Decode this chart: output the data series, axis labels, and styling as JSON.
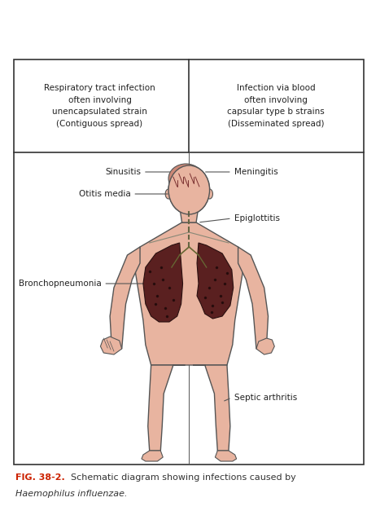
{
  "fig_width": 4.52,
  "fig_height": 6.43,
  "dpi": 100,
  "background_color": "#ffffff",
  "skin_color": "#e8b4a0",
  "skin_outline": "#555555",
  "lung_color": "#5a2020",
  "brain_fill": "#cc8877",
  "header_left": "Respiratory tract infection\noften involving\nunencapsulated strain\n(Contiguous spread)",
  "header_right": "Infection via blood\noften involving\ncapsular type b strains\n(Disseminated spread)",
  "caption_fig": "FIG. 38-2.",
  "caption_rest": "    Schematic diagram showing infections caused by",
  "caption_italic": "Haemophilus influenzae."
}
